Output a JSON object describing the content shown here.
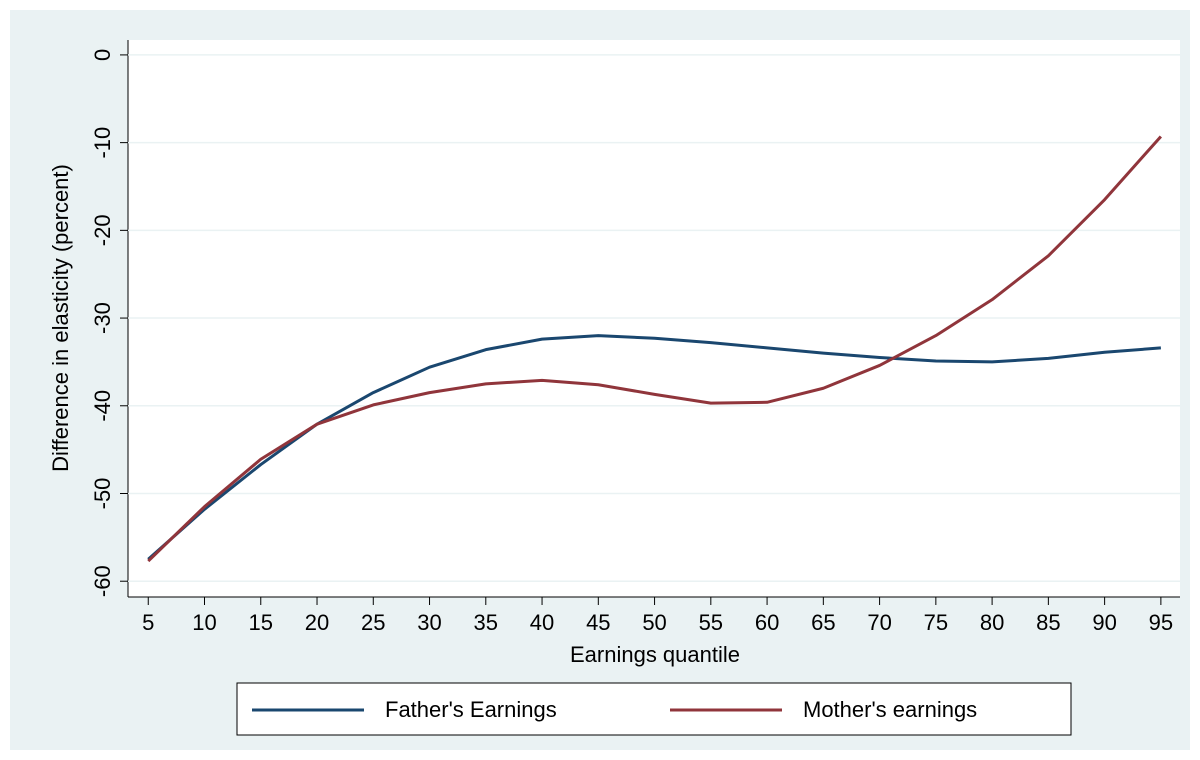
{
  "chart_data": {
    "type": "line",
    "x": [
      5,
      10,
      15,
      20,
      25,
      30,
      35,
      40,
      45,
      50,
      55,
      60,
      65,
      70,
      75,
      80,
      85,
      90,
      95
    ],
    "series": [
      {
        "name": "Father's Earnings",
        "color": "#1a476f",
        "values": [
          -57.5,
          -51.8,
          -46.7,
          -42.1,
          -38.5,
          -35.6,
          -33.6,
          -32.4,
          -32.0,
          -32.3,
          -32.8,
          -33.4,
          -34.0,
          -34.5,
          -34.9,
          -35.0,
          -34.6,
          -33.9,
          -33.4
        ]
      },
      {
        "name": "Mother's earnings",
        "color": "#90353b",
        "values": [
          -57.7,
          -51.5,
          -46.1,
          -42.1,
          -39.9,
          -38.5,
          -37.5,
          -37.1,
          -37.6,
          -38.7,
          -39.7,
          -39.6,
          -38.0,
          -35.4,
          -32.0,
          -27.9,
          -22.9,
          -16.5,
          -9.3
        ]
      }
    ],
    "x_label": "Earnings quantile",
    "y_label": "Difference in elasticity (percent)",
    "xlim": [
      3.2,
      96.7
    ],
    "xticks": [
      5,
      10,
      15,
      20,
      25,
      30,
      35,
      40,
      45,
      50,
      55,
      60,
      65,
      70,
      75,
      80,
      85,
      90,
      95
    ],
    "ylim": [
      -61.8,
      1.7
    ],
    "yticks": [
      0,
      -10,
      -20,
      -30,
      -40,
      -50,
      -60
    ],
    "grid": true,
    "legend": "bottom"
  }
}
